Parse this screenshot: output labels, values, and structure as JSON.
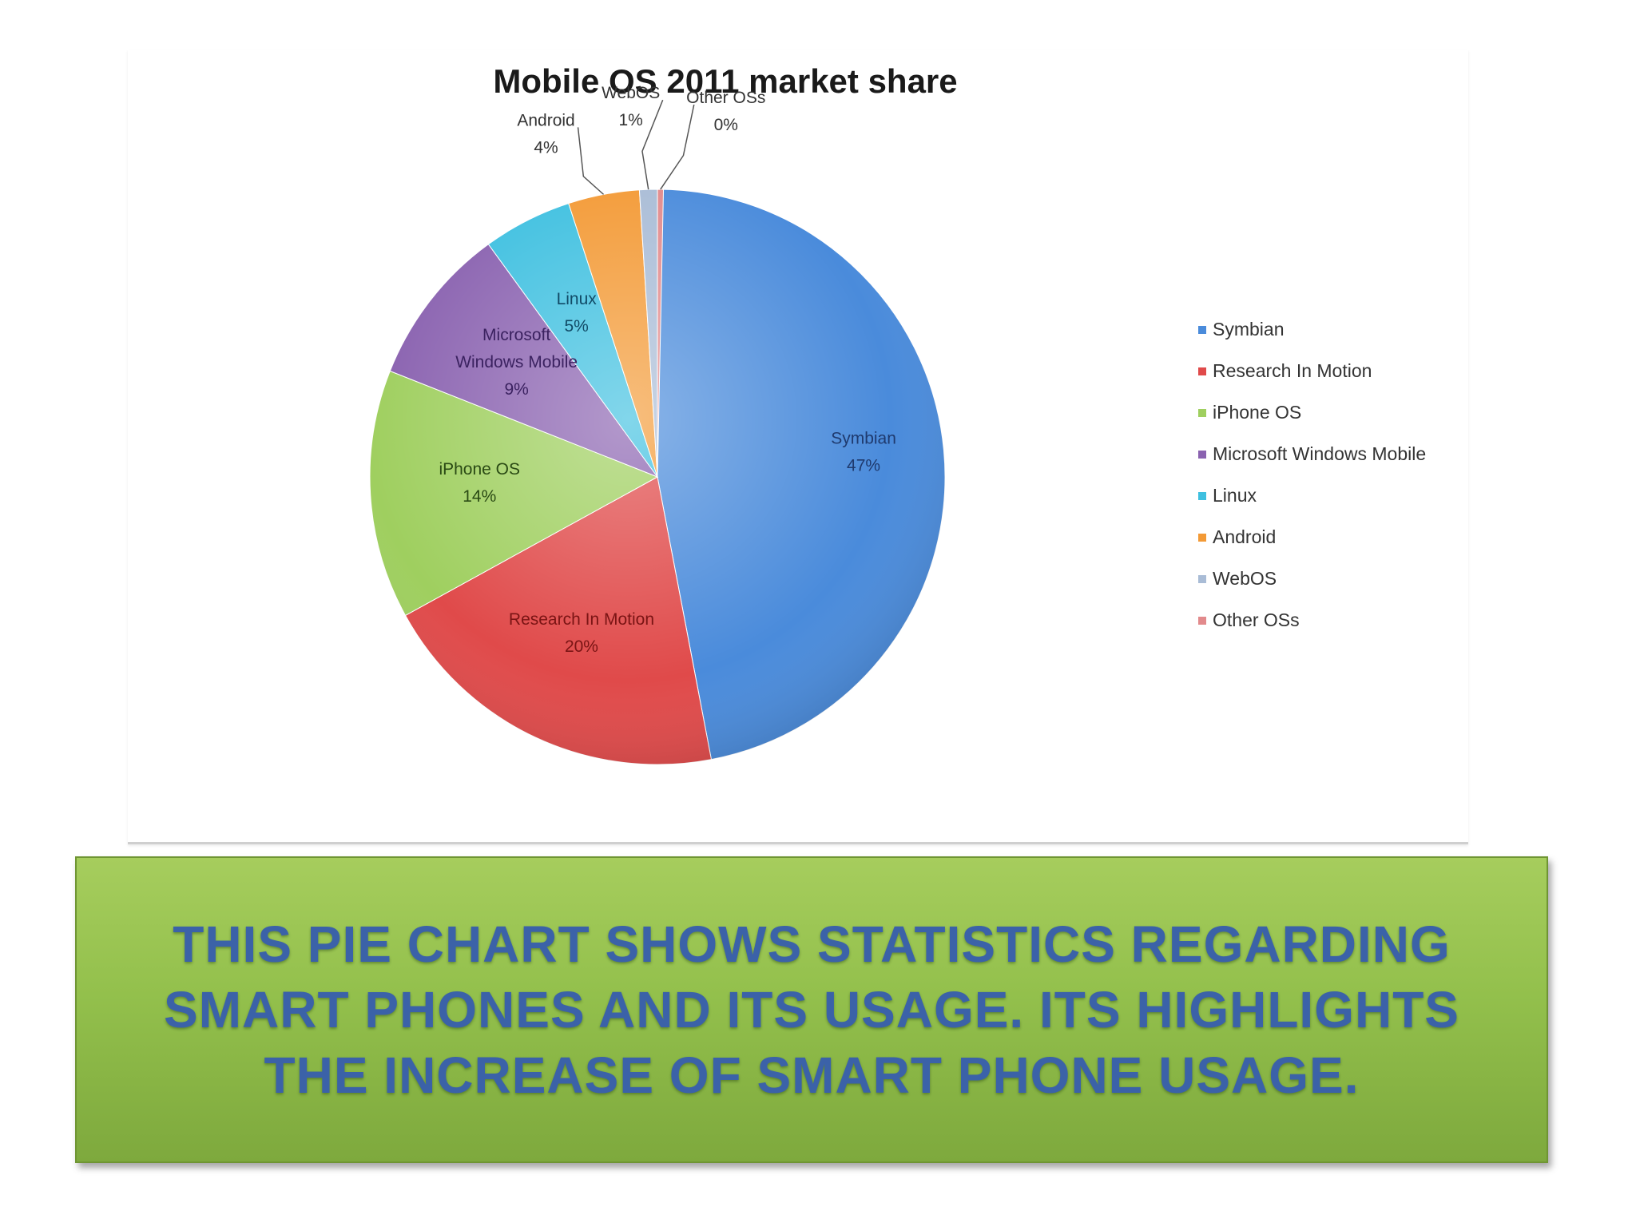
{
  "colors": {
    "Symbian": "#4a8bdb",
    "Research In Motion": "#e04a4a",
    "iPhone OS": "#9fcf5f",
    "Microsoft Windows Mobile": "#8a62b0",
    "Linux": "#3fc0e0",
    "Android": "#f39a36",
    "WebOS": "#a9bcd6",
    "Other OSs": "#e28a8c",
    "label_dark": "#1f3a6e",
    "label_red": "#7a1414",
    "label_green": "#2a4a14",
    "label_purple": "#3b2260",
    "label_cyan": "#114a66",
    "caption_text": "#3b62a8",
    "caption_bg": "#93c04c"
  },
  "chart_data": {
    "type": "pie",
    "title": "Mobile OS 2011 market share",
    "categories": [
      "Symbian",
      "Research In Motion",
      "iPhone OS",
      "Microsoft Windows Mobile",
      "Linux",
      "Android",
      "WebOS",
      "Other OSs"
    ],
    "values": [
      47,
      20,
      14,
      9,
      5,
      4,
      1,
      0
    ],
    "value_labels": [
      "47%",
      "20%",
      "14%",
      "9%",
      "5%",
      "4%",
      "1%",
      "0%"
    ],
    "slice_labels": [
      [
        "Symbian"
      ],
      [
        "Research In Motion"
      ],
      [
        "iPhone OS"
      ],
      [
        "Microsoft",
        "Windows Mobile"
      ],
      [
        "Linux"
      ],
      [
        "Android"
      ],
      [
        "WebOS"
      ],
      [
        "Other OSs"
      ]
    ],
    "legend": {
      "placement": "right",
      "entries": [
        "Symbian",
        "Research In Motion",
        "iPhone OS",
        "Microsoft Windows Mobile",
        "Linux",
        "Android",
        "WebOS",
        "Other OSs"
      ]
    }
  },
  "caption": {
    "text": "This pie chart shows statistics regarding smart phones and its usage. Its highlights the increase of smart phone usage."
  }
}
